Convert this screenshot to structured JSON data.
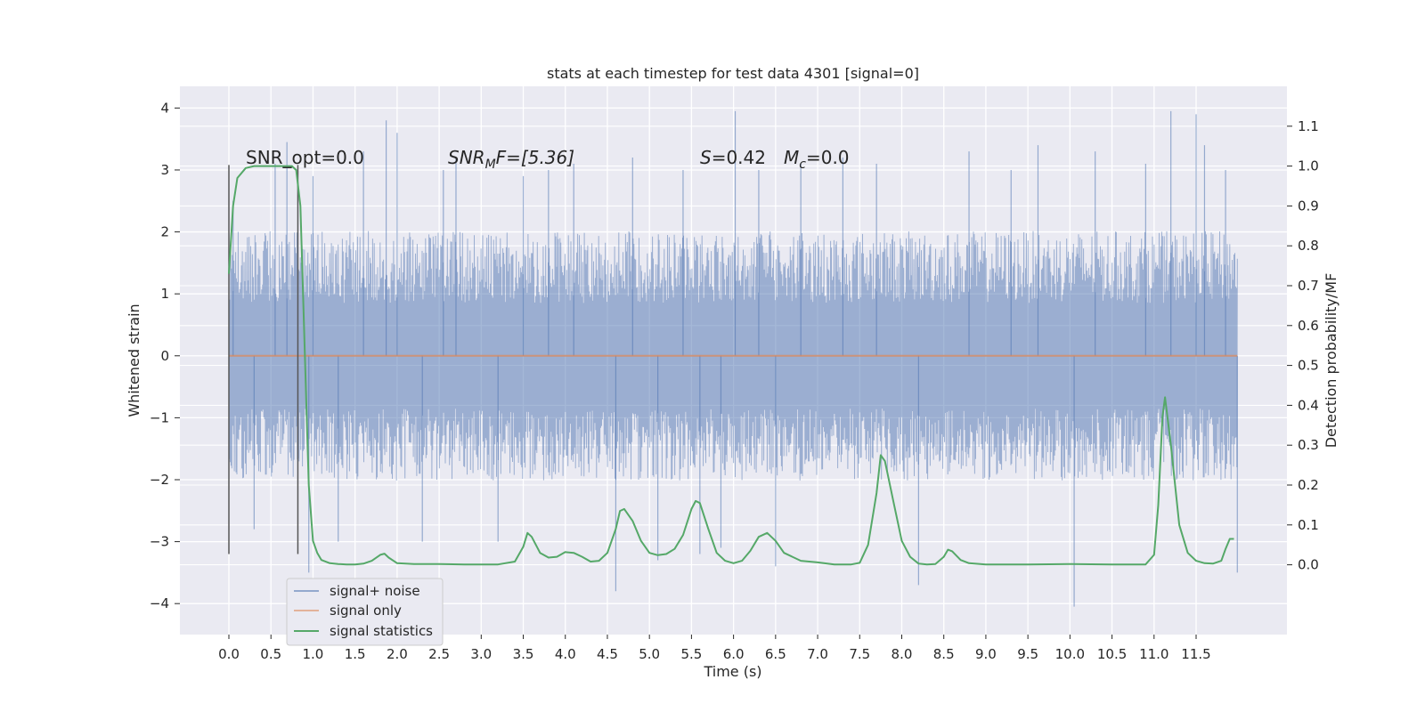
{
  "chart_data": {
    "type": "line",
    "title": "stats at each timestep for test data 4301 [signal=0]",
    "xlabel": "Time (s)",
    "ylabel": "Whitened strain",
    "y2label": "Detection probability/MF",
    "xlim": [
      -0.5825,
      12.58
    ],
    "ylim": [
      -4.5,
      4.35
    ],
    "y2lim": [
      -0.175,
      1.2
    ],
    "x_ticks": [
      "0.0",
      "0.5",
      "1.0",
      "1.5",
      "2.0",
      "2.5",
      "3.0",
      "3.5",
      "4.0",
      "4.5",
      "5.0",
      "5.5",
      "6.0",
      "6.5",
      "7.0",
      "7.5",
      "8.0",
      "8.5",
      "9.0",
      "9.5",
      "10.0",
      "10.5",
      "11.0",
      "11.5"
    ],
    "y_ticks": [
      "4",
      "3",
      "2",
      "1",
      "0",
      "−1",
      "−2",
      "−3",
      "−4"
    ],
    "y2_ticks": [
      "1.1",
      "1.0",
      "0.9",
      "0.8",
      "0.7",
      "0.6",
      "0.5",
      "0.4",
      "0.3",
      "0.2",
      "0.1",
      "0.0"
    ],
    "grid": true,
    "legend_position": "lower-left",
    "annotations": {
      "snr_opt": "SNR_opt=0.0",
      "snr_mf_prefix": "SNR",
      "snr_mf_sub": "M",
      "snr_mf_suffix": "F=[5.36]",
      "s_prefix": "S",
      "s_value": "=0.42",
      "mc_prefix": "M",
      "mc_sub": "c",
      "mc_value": "=0.0"
    },
    "vlines": [
      0.0,
      0.82
    ],
    "vline_range": [
      -3.2,
      3.08
    ],
    "series": [
      {
        "name": "signal+ noise",
        "color": "#4c72b0",
        "axis": "left",
        "x_range": [
          0.0,
          11.99
        ],
        "envelope_typical": 1.55,
        "spikes": [
          {
            "x": 0.05,
            "y": 2.5
          },
          {
            "x": 0.3,
            "y": -2.8
          },
          {
            "x": 0.55,
            "y": 3.1
          },
          {
            "x": 0.69,
            "y": 3.45
          },
          {
            "x": 0.95,
            "y": -3.5
          },
          {
            "x": 1.0,
            "y": 2.9
          },
          {
            "x": 1.3,
            "y": -3.0
          },
          {
            "x": 1.6,
            "y": 3.3
          },
          {
            "x": 1.87,
            "y": 3.8
          },
          {
            "x": 2.0,
            "y": 3.6
          },
          {
            "x": 2.3,
            "y": -3.0
          },
          {
            "x": 2.55,
            "y": 3.0
          },
          {
            "x": 2.7,
            "y": 3.2
          },
          {
            "x": 3.2,
            "y": -3.0
          },
          {
            "x": 3.5,
            "y": 2.9
          },
          {
            "x": 3.8,
            "y": 3.0
          },
          {
            "x": 4.1,
            "y": 3.1
          },
          {
            "x": 4.6,
            "y": -3.8
          },
          {
            "x": 4.8,
            "y": 3.2
          },
          {
            "x": 5.1,
            "y": -3.3
          },
          {
            "x": 5.4,
            "y": 3.0
          },
          {
            "x": 5.6,
            "y": -3.2
          },
          {
            "x": 5.85,
            "y": -3.1
          },
          {
            "x": 6.02,
            "y": 3.95
          },
          {
            "x": 6.3,
            "y": 3.0
          },
          {
            "x": 6.5,
            "y": -3.4
          },
          {
            "x": 6.8,
            "y": 3.1
          },
          {
            "x": 7.3,
            "y": 3.2
          },
          {
            "x": 7.7,
            "y": 3.1
          },
          {
            "x": 8.2,
            "y": -3.7
          },
          {
            "x": 8.8,
            "y": 3.3
          },
          {
            "x": 9.3,
            "y": 3.0
          },
          {
            "x": 9.62,
            "y": 3.4
          },
          {
            "x": 10.05,
            "y": -4.05
          },
          {
            "x": 10.3,
            "y": 3.3
          },
          {
            "x": 10.9,
            "y": 3.1
          },
          {
            "x": 11.2,
            "y": 3.95
          },
          {
            "x": 11.5,
            "y": 3.9
          },
          {
            "x": 11.6,
            "y": 3.4
          },
          {
            "x": 11.85,
            "y": 3.0
          },
          {
            "x": 11.99,
            "y": -3.5
          }
        ]
      },
      {
        "name": "signal only",
        "color": "#dd8452",
        "axis": "left",
        "x": [
          0.0,
          11.99
        ],
        "y": [
          0.0,
          0.0
        ]
      },
      {
        "name": "signal statistics",
        "color": "#55a868",
        "axis": "right",
        "x": [
          0.0,
          0.05,
          0.1,
          0.2,
          0.3,
          0.4,
          0.5,
          0.6,
          0.7,
          0.75,
          0.8,
          0.85,
          0.9,
          0.95,
          1.0,
          1.05,
          1.1,
          1.2,
          1.3,
          1.4,
          1.5,
          1.6,
          1.7,
          1.8,
          1.85,
          1.9,
          2.0,
          2.2,
          2.5,
          2.8,
          3.2,
          3.4,
          3.5,
          3.55,
          3.6,
          3.7,
          3.8,
          3.9,
          4.0,
          4.1,
          4.2,
          4.3,
          4.4,
          4.5,
          4.6,
          4.65,
          4.7,
          4.8,
          4.9,
          5.0,
          5.1,
          5.2,
          5.3,
          5.4,
          5.5,
          5.55,
          5.6,
          5.7,
          5.8,
          5.9,
          6.0,
          6.1,
          6.2,
          6.3,
          6.4,
          6.5,
          6.6,
          6.8,
          7.0,
          7.2,
          7.4,
          7.5,
          7.6,
          7.7,
          7.75,
          7.8,
          7.9,
          8.0,
          8.1,
          8.2,
          8.3,
          8.4,
          8.5,
          8.55,
          8.6,
          8.7,
          8.8,
          9.0,
          9.5,
          10.0,
          10.5,
          10.9,
          11.0,
          11.05,
          11.1,
          11.13,
          11.2,
          11.3,
          11.4,
          11.5,
          11.6,
          11.7,
          11.8,
          11.85,
          11.9,
          11.95
        ],
        "y": [
          0.73,
          0.9,
          0.97,
          0.995,
          1.0,
          1.0,
          1.0,
          1.0,
          1.0,
          1.0,
          0.99,
          0.9,
          0.55,
          0.2,
          0.06,
          0.03,
          0.012,
          0.004,
          0.002,
          0.001,
          0.001,
          0.003,
          0.01,
          0.025,
          0.028,
          0.018,
          0.004,
          0.002,
          0.002,
          0.001,
          0.001,
          0.008,
          0.045,
          0.08,
          0.07,
          0.03,
          0.018,
          0.02,
          0.032,
          0.03,
          0.02,
          0.008,
          0.01,
          0.03,
          0.09,
          0.135,
          0.14,
          0.11,
          0.06,
          0.03,
          0.024,
          0.027,
          0.04,
          0.075,
          0.14,
          0.16,
          0.155,
          0.09,
          0.03,
          0.01,
          0.004,
          0.01,
          0.035,
          0.07,
          0.08,
          0.06,
          0.03,
          0.01,
          0.006,
          0.001,
          0.001,
          0.005,
          0.05,
          0.18,
          0.275,
          0.26,
          0.16,
          0.06,
          0.02,
          0.003,
          0.001,
          0.002,
          0.02,
          0.038,
          0.034,
          0.012,
          0.004,
          0.001,
          0.001,
          0.002,
          0.001,
          0.001,
          0.025,
          0.15,
          0.37,
          0.42,
          0.3,
          0.1,
          0.03,
          0.01,
          0.004,
          0.003,
          0.01,
          0.04,
          0.065,
          0.065
        ]
      }
    ]
  }
}
